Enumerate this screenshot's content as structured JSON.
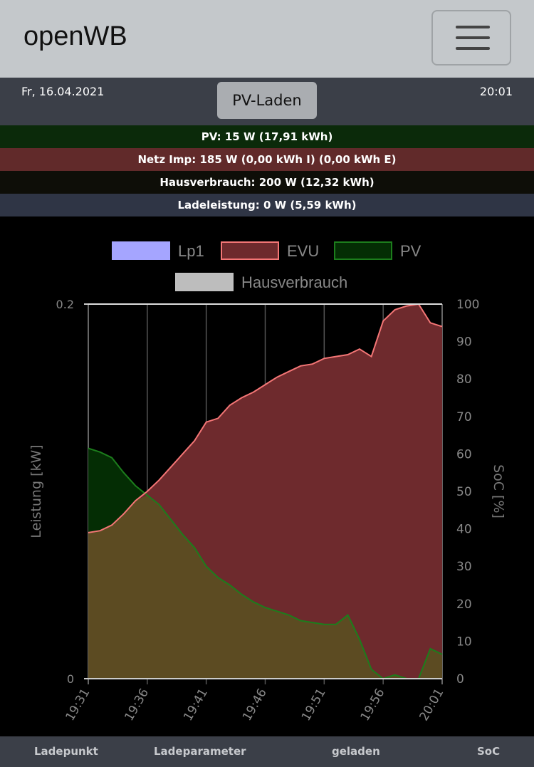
{
  "navbar": {
    "brand": "openWB",
    "menu_icon": "hamburger-icon"
  },
  "status": {
    "date": "Fr, 16.04.2021",
    "time": "20:01",
    "mode_label": "PV-Laden"
  },
  "info": {
    "pv": "PV: 15 W (17,91 kWh)",
    "netz": "Netz Imp: 185 W (0,00 kWh I) (0,00 kWh E)",
    "haus": "Hausverbrauch: 200 W (12,32 kWh)",
    "lade": "Ladeleistung: 0 W (5,59 kWh)"
  },
  "colors": {
    "lp1": "#a5a5ff",
    "evu": "#f47676",
    "evu_fill": "#6e2a2d",
    "pv": "#1c7d1c",
    "pv_fill": "#042d04",
    "haus_fill": "#5c4b22"
  },
  "footer": {
    "col1": "Ladepunkt",
    "col2": "Ladeparameter",
    "col3": "geladen",
    "col4": "SoC"
  },
  "chart_data": {
    "type": "area",
    "legend": [
      {
        "label": "Lp1",
        "color": "#a5a5ff"
      },
      {
        "label": "EVU",
        "color": "#f47676"
      },
      {
        "label": "PV",
        "color": "#1c7d1c"
      },
      {
        "label": "Hausverbrauch",
        "color": "#c0c0c0"
      }
    ],
    "x_ticks": [
      "19:31",
      "19:36",
      "19:41",
      "19:46",
      "19:51",
      "19:56",
      "20:01"
    ],
    "ylabel": "Leistung [kW]",
    "y2label": "SoC [%]",
    "ylim": [
      0,
      0.2
    ],
    "y_ticks": [
      "0",
      "0.2"
    ],
    "y2lim": [
      0,
      100
    ],
    "y2_ticks": [
      "0",
      "10",
      "20",
      "30",
      "40",
      "50",
      "60",
      "70",
      "80",
      "90",
      "100"
    ],
    "x": [
      0,
      1,
      2,
      3,
      4,
      5,
      6,
      7,
      8,
      9,
      10,
      11,
      12,
      13,
      14,
      15,
      16,
      17,
      18,
      19,
      20,
      21,
      22,
      23,
      24,
      25,
      26,
      27,
      28,
      29,
      30
    ],
    "series": [
      {
        "name": "EVU",
        "values": [
          0.078,
          0.079,
          0.082,
          0.088,
          0.095,
          0.1,
          0.106,
          0.113,
          0.12,
          0.127,
          0.137,
          0.139,
          0.146,
          0.15,
          0.153,
          0.157,
          0.161,
          0.164,
          0.167,
          0.168,
          0.171,
          0.172,
          0.173,
          0.176,
          0.172,
          0.191,
          0.197,
          0.199,
          0.2,
          0.19,
          0.188
        ]
      },
      {
        "name": "PV",
        "values": [
          0.123,
          0.121,
          0.118,
          0.11,
          0.103,
          0.098,
          0.093,
          0.085,
          0.077,
          0.07,
          0.06,
          0.054,
          0.05,
          0.045,
          0.041,
          0.038,
          0.036,
          0.034,
          0.031,
          0.03,
          0.029,
          0.029,
          0.034,
          0.021,
          0.005,
          0.0,
          0.002,
          0.0,
          0.0,
          0.016,
          0.013
        ]
      },
      {
        "name": "Hausverbrauch",
        "values": [
          0.078,
          0.079,
          0.082,
          0.088,
          0.095,
          0.098,
          0.093,
          0.085,
          0.077,
          0.07,
          0.06,
          0.054,
          0.05,
          0.045,
          0.041,
          0.038,
          0.036,
          0.034,
          0.031,
          0.03,
          0.029,
          0.029,
          0.034,
          0.021,
          0.005,
          0.0,
          0.002,
          0.0,
          0.0,
          0.016,
          0.013
        ]
      },
      {
        "name": "Lp1",
        "values": [
          0,
          0,
          0,
          0,
          0,
          0,
          0,
          0,
          0,
          0,
          0,
          0,
          0,
          0,
          0,
          0,
          0,
          0,
          0,
          0,
          0,
          0,
          0,
          0,
          0,
          0,
          0,
          0,
          0,
          0,
          0
        ]
      }
    ]
  }
}
